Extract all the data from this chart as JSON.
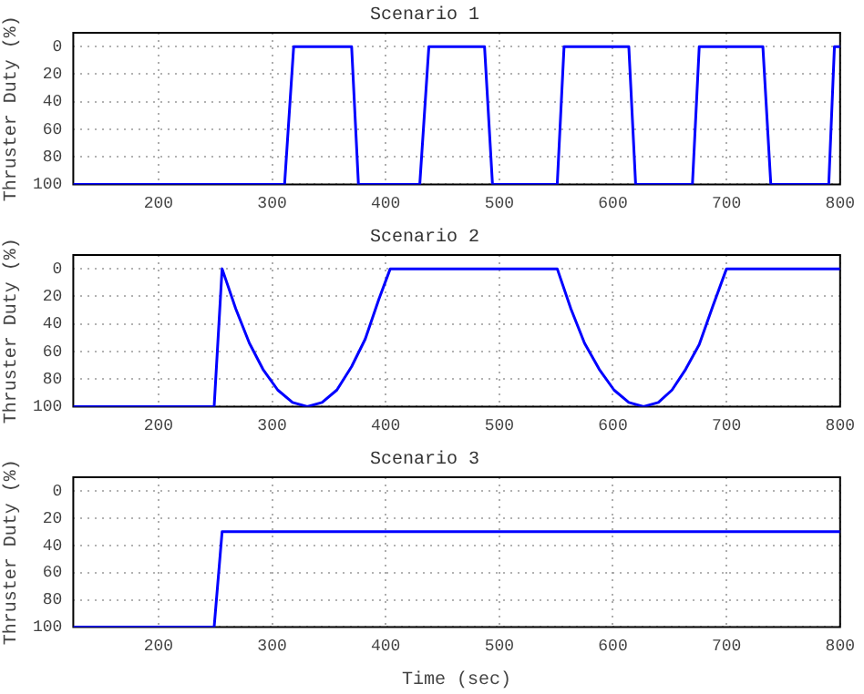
{
  "chart_data": [
    {
      "type": "line",
      "title": "Scenario 1",
      "ylabel": "Thruster Duty (%)",
      "color": "#0000ff",
      "grid": true,
      "xlim": [
        125,
        800
      ],
      "xticks": [
        200,
        300,
        400,
        500,
        600,
        700,
        800
      ],
      "ylim": [
        100,
        -10
      ],
      "yticks": [
        0,
        20,
        40,
        60,
        80,
        100
      ],
      "x": [
        125,
        311,
        319,
        370,
        376,
        430,
        438,
        487,
        494,
        551,
        557,
        614,
        620,
        670,
        676,
        732,
        739,
        790,
        795,
        800
      ],
      "values": [
        100,
        100,
        0,
        0,
        100,
        100,
        0,
        0,
        100,
        100,
        0,
        0,
        100,
        100,
        0,
        0,
        100,
        100,
        0,
        0
      ]
    },
    {
      "type": "line",
      "title": "Scenario 2",
      "ylabel": "Thruster Duty (%)",
      "color": "#0000ff",
      "grid": true,
      "xlim": [
        125,
        800
      ],
      "xticks": [
        200,
        300,
        400,
        500,
        600,
        700,
        800
      ],
      "ylim": [
        100,
        -10
      ],
      "yticks": [
        0,
        20,
        40,
        60,
        80,
        100
      ],
      "x": [
        125,
        249,
        256,
        268,
        280,
        292,
        305,
        318,
        331,
        344,
        357,
        370,
        382,
        394,
        404,
        551,
        563,
        575,
        588,
        601,
        614,
        627,
        640,
        652,
        664,
        676,
        688,
        700,
        800
      ],
      "values": [
        100,
        100,
        0,
        29,
        54,
        73,
        88,
        97,
        100,
        97,
        88,
        71,
        51,
        22,
        0,
        0,
        29,
        54,
        73,
        88,
        97,
        100,
        97,
        88,
        73,
        55,
        27,
        0,
        0
      ]
    },
    {
      "type": "line",
      "title": "Scenario 3",
      "ylabel": "Thruster Duty (%)",
      "xlabel": "Time (sec)",
      "color": "#0000ff",
      "grid": true,
      "xlim": [
        125,
        800
      ],
      "xticks": [
        200,
        300,
        400,
        500,
        600,
        700,
        800
      ],
      "ylim": [
        100,
        -10
      ],
      "yticks": [
        0,
        20,
        40,
        60,
        80,
        100
      ],
      "x": [
        125,
        249,
        256,
        800
      ],
      "values": [
        100,
        100,
        30,
        30
      ]
    }
  ]
}
